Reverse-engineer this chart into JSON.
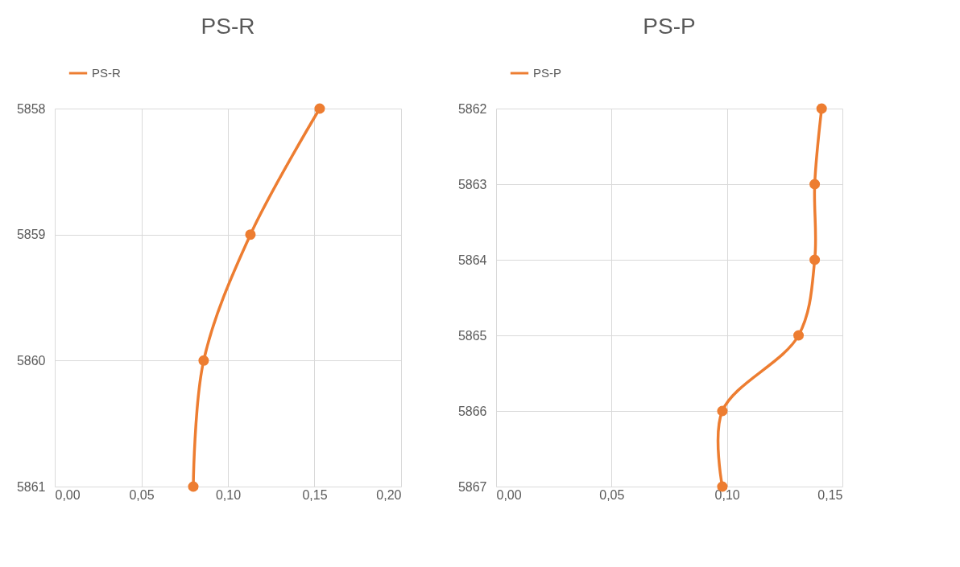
{
  "chart_data": [
    {
      "type": "line",
      "title": "PS-R",
      "orientation": "horizontal",
      "categories": [
        "5858",
        "5859",
        "5860",
        "5861"
      ],
      "series": [
        {
          "name": "PS-R",
          "color": "#ed7d31",
          "values": [
            0.153,
            0.113,
            0.086,
            0.08
          ]
        }
      ],
      "xlim": [
        0,
        0.2
      ],
      "xticks": [
        {
          "value": 0,
          "label": "0,00"
        },
        {
          "value": 0.05,
          "label": "0,05"
        },
        {
          "value": 0.1,
          "label": "0,10"
        },
        {
          "value": 0.15,
          "label": "0,15"
        },
        {
          "value": 0.2,
          "label": "0,20"
        }
      ],
      "grid": true,
      "legend": "top",
      "marker": "circle",
      "line_style": "solid"
    },
    {
      "type": "line",
      "title": "PS-P",
      "orientation": "horizontal",
      "categories": [
        "5862",
        "5863",
        "5864",
        "5865",
        "5866",
        "5867"
      ],
      "series": [
        {
          "name": "PS-P",
          "color": "#ed7d31",
          "values": [
            0.141,
            0.138,
            0.138,
            0.131,
            0.098,
            0.098
          ]
        }
      ],
      "xlim": [
        0,
        0.15
      ],
      "xticks": [
        {
          "value": 0,
          "label": "0,00"
        },
        {
          "value": 0.05,
          "label": "0,05"
        },
        {
          "value": 0.1,
          "label": "0,10"
        },
        {
          "value": 0.15,
          "label": "0,15"
        }
      ],
      "grid": true,
      "legend": "top",
      "marker": "circle",
      "line_style": "solid"
    }
  ]
}
